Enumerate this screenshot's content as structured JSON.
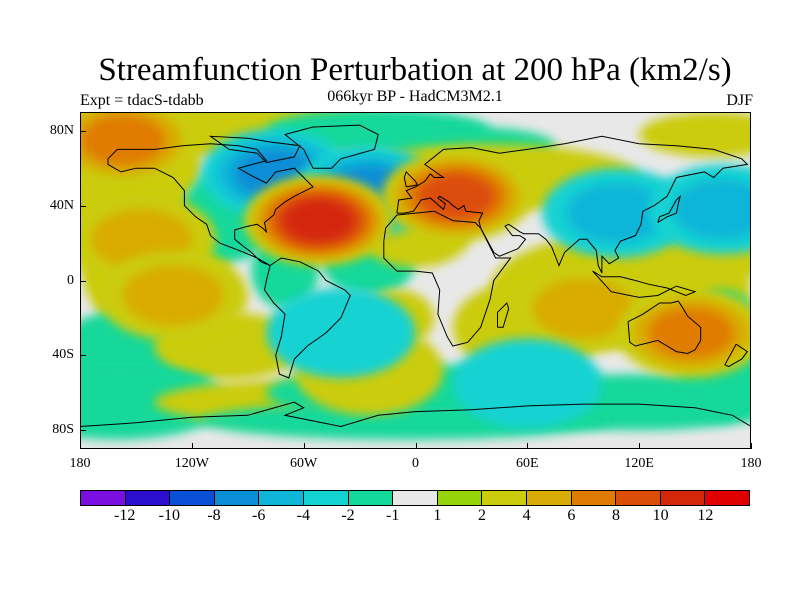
{
  "title": "Streamfunction Perturbation at 200 hPa (km2/s)",
  "subtitle": "066kyr BP - HadCM3M2.1",
  "left_label": "Expt = tdacS-tdabb",
  "right_label": "DJF",
  "lat_ticks": [
    "80N",
    "40N",
    "0",
    "40S",
    "80S"
  ],
  "lon_ticks": [
    "180",
    "120W",
    "60W",
    "0",
    "60E",
    "120E",
    "180"
  ],
  "colorbar": {
    "labels": [
      "-12",
      "-10",
      "-8",
      "-6",
      "-4",
      "-2",
      "-1",
      "1",
      "2",
      "4",
      "6",
      "8",
      "10",
      "12"
    ],
    "colors": [
      "#7a0fe0",
      "#2c0ecf",
      "#0a50d6",
      "#0a8ed6",
      "#10b6d8",
      "#12d2d2",
      "#12d89a",
      "#e8e8e8",
      "#96d40a",
      "#cbcc0c",
      "#d9ab06",
      "#e07c06",
      "#dc4e08",
      "#d42608",
      "#e00000"
    ]
  },
  "chart_data": {
    "type": "heatmap",
    "title": "Streamfunction Perturbation at 200 hPa (km2/s)",
    "subtitle": "066kyr BP - HadCM3M2.1",
    "variable": "streamfunction perturbation",
    "units": "km2/s",
    "season": "DJF",
    "experiment": "tdacS-tdabb",
    "x_range": [
      -180,
      180
    ],
    "y_range": [
      -90,
      90
    ],
    "features": [
      {
        "lon": -157,
        "lat": 75,
        "value": 6
      },
      {
        "lon": -75,
        "lat": 57,
        "value": -6
      },
      {
        "lon": -25,
        "lat": 48,
        "value": -6
      },
      {
        "lon": -52,
        "lat": 32,
        "value": 10
      },
      {
        "lon": 22,
        "lat": 45,
        "value": 8
      },
      {
        "lon": 108,
        "lat": 36,
        "value": -4
      },
      {
        "lon": 165,
        "lat": 38,
        "value": -4
      },
      {
        "lon": -147,
        "lat": 22,
        "value": 4
      },
      {
        "lon": -130,
        "lat": -8,
        "value": 4
      },
      {
        "lon": 90,
        "lat": -15,
        "value": 4
      },
      {
        "lon": 148,
        "lat": -28,
        "value": 6
      },
      {
        "lon": -25,
        "lat": -48,
        "value": 2
      },
      {
        "lon": -40,
        "lat": -28,
        "value": -2
      },
      {
        "lon": 60,
        "lat": -55,
        "value": -2
      }
    ]
  }
}
